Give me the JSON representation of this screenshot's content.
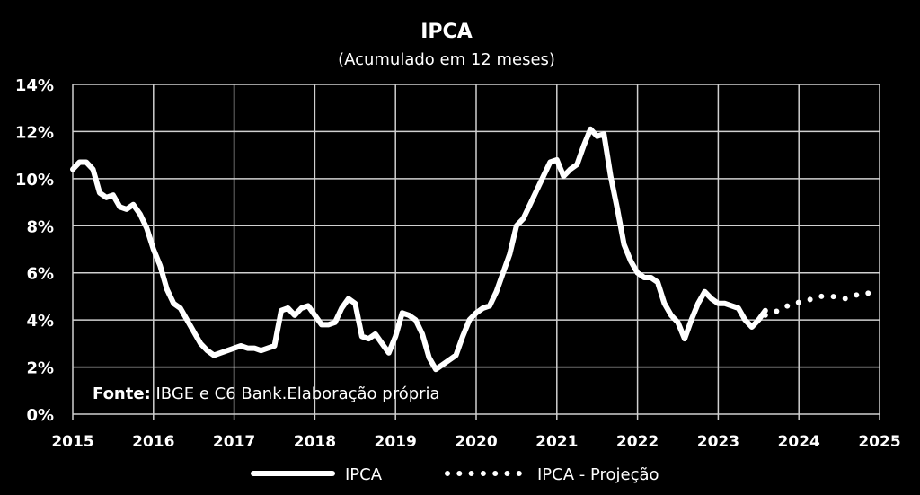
{
  "chart_data": {
    "type": "line",
    "title": "IPCA",
    "subtitle": "(Acumulado em 12 meses)",
    "source_prefix": "Fonte:",
    "source_text": " IBGE e C6 Bank.Elaboração própria",
    "x_ticks": [
      "2015",
      "2016",
      "2017",
      "2018",
      "2019",
      "2020",
      "2021",
      "2022",
      "2023",
      "2024",
      "2025"
    ],
    "y_ticks": [
      "0%",
      "2%",
      "4%",
      "6%",
      "8%",
      "10%",
      "12%",
      "14%"
    ],
    "xlim": [
      "2015-01",
      "2025-01"
    ],
    "ylim": [
      0,
      14
    ],
    "grid": true,
    "legend": {
      "position": "bottom"
    },
    "colors": {
      "background": "#000000",
      "grid": "#d0d0d0",
      "line": "#ffffff",
      "text": "#ffffff"
    },
    "series": [
      {
        "name": "IPCA",
        "style": "solid",
        "points": [
          [
            "2015-01",
            10.4
          ],
          [
            "2015-02",
            10.7
          ],
          [
            "2015-03",
            10.7
          ],
          [
            "2015-04",
            10.4
          ],
          [
            "2015-05",
            9.4
          ],
          [
            "2015-06",
            9.2
          ],
          [
            "2015-07",
            9.3
          ],
          [
            "2015-08",
            8.8
          ],
          [
            "2015-09",
            8.7
          ],
          [
            "2015-10",
            8.9
          ],
          [
            "2015-11",
            8.5
          ],
          [
            "2015-12",
            7.9
          ],
          [
            "2016-01",
            7.0
          ],
          [
            "2016-02",
            6.3
          ],
          [
            "2016-03",
            5.3
          ],
          [
            "2016-04",
            4.7
          ],
          [
            "2016-05",
            4.5
          ],
          [
            "2016-06",
            4.0
          ],
          [
            "2016-07",
            3.5
          ],
          [
            "2016-08",
            3.0
          ],
          [
            "2016-09",
            2.7
          ],
          [
            "2016-10",
            2.5
          ],
          [
            "2016-11",
            2.6
          ],
          [
            "2016-12",
            2.7
          ],
          [
            "2017-01",
            2.8
          ],
          [
            "2017-02",
            2.9
          ],
          [
            "2017-03",
            2.8
          ],
          [
            "2017-04",
            2.8
          ],
          [
            "2017-05",
            2.7
          ],
          [
            "2017-06",
            2.8
          ],
          [
            "2017-07",
            2.9
          ],
          [
            "2017-08",
            4.4
          ],
          [
            "2017-09",
            4.5
          ],
          [
            "2017-10",
            4.2
          ],
          [
            "2017-11",
            4.5
          ],
          [
            "2017-12",
            4.6
          ],
          [
            "2018-01",
            4.2
          ],
          [
            "2018-02",
            3.8
          ],
          [
            "2018-03",
            3.8
          ],
          [
            "2018-04",
            3.9
          ],
          [
            "2018-05",
            4.5
          ],
          [
            "2018-06",
            4.9
          ],
          [
            "2018-07",
            4.7
          ],
          [
            "2018-08",
            3.3
          ],
          [
            "2018-09",
            3.2
          ],
          [
            "2018-10",
            3.4
          ],
          [
            "2018-11",
            3.0
          ],
          [
            "2018-12",
            2.6
          ],
          [
            "2019-01",
            3.3
          ],
          [
            "2019-02",
            4.3
          ],
          [
            "2019-03",
            4.2
          ],
          [
            "2019-04",
            4.0
          ],
          [
            "2019-05",
            3.4
          ],
          [
            "2019-06",
            2.4
          ],
          [
            "2019-07",
            1.9
          ],
          [
            "2019-08",
            2.1
          ],
          [
            "2019-09",
            2.3
          ],
          [
            "2019-10",
            2.5
          ],
          [
            "2019-11",
            3.3
          ],
          [
            "2019-12",
            4.0
          ],
          [
            "2020-01",
            4.3
          ],
          [
            "2020-02",
            4.5
          ],
          [
            "2020-03",
            4.6
          ],
          [
            "2020-04",
            5.2
          ],
          [
            "2020-05",
            6.0
          ],
          [
            "2020-06",
            6.8
          ],
          [
            "2020-07",
            8.0
          ],
          [
            "2020-08",
            8.3
          ],
          [
            "2020-09",
            8.9
          ],
          [
            "2020-10",
            9.5
          ],
          [
            "2020-11",
            10.1
          ],
          [
            "2020-12",
            10.7
          ],
          [
            "2021-01",
            10.8
          ],
          [
            "2021-02",
            10.1
          ],
          [
            "2021-03",
            10.4
          ],
          [
            "2021-04",
            10.6
          ],
          [
            "2021-05",
            11.4
          ],
          [
            "2021-06",
            12.1
          ],
          [
            "2021-07",
            11.8
          ],
          [
            "2021-08",
            11.9
          ],
          [
            "2021-09",
            10.1
          ],
          [
            "2021-10",
            8.7
          ],
          [
            "2021-11",
            7.2
          ],
          [
            "2021-12",
            6.5
          ],
          [
            "2022-01",
            6.0
          ],
          [
            "2022-02",
            5.8
          ],
          [
            "2022-03",
            5.8
          ],
          [
            "2022-04",
            5.6
          ],
          [
            "2022-05",
            4.7
          ],
          [
            "2022-06",
            4.2
          ],
          [
            "2022-07",
            3.9
          ],
          [
            "2022-08",
            3.2
          ],
          [
            "2022-09",
            4.0
          ],
          [
            "2022-10",
            4.7
          ],
          [
            "2022-11",
            5.2
          ],
          [
            "2022-12",
            4.9
          ],
          [
            "2023-01",
            4.7
          ],
          [
            "2023-02",
            4.7
          ],
          [
            "2023-03",
            4.6
          ],
          [
            "2023-04",
            4.5
          ],
          [
            "2023-05",
            4.0
          ],
          [
            "2023-06",
            3.7
          ],
          [
            "2023-07",
            4.0
          ],
          [
            "2023-08",
            4.4
          ]
        ]
      },
      {
        "name": "IPCA - Projeção",
        "style": "dotted",
        "points": [
          [
            "2023-08",
            4.2
          ],
          [
            "2023-09",
            4.3
          ],
          [
            "2023-10",
            4.4
          ],
          [
            "2023-11",
            4.55
          ],
          [
            "2023-12",
            4.7
          ],
          [
            "2024-01",
            4.75
          ],
          [
            "2024-02",
            4.8
          ],
          [
            "2024-03",
            4.9
          ],
          [
            "2024-04",
            5.0
          ],
          [
            "2024-05",
            5.0
          ],
          [
            "2024-06",
            5.0
          ],
          [
            "2024-07",
            4.95
          ],
          [
            "2024-08",
            4.9
          ],
          [
            "2024-09",
            5.0
          ],
          [
            "2024-10",
            5.1
          ],
          [
            "2024-11",
            5.15
          ],
          [
            "2024-12",
            5.1
          ],
          [
            "2025-01",
            5.0
          ]
        ]
      }
    ]
  }
}
